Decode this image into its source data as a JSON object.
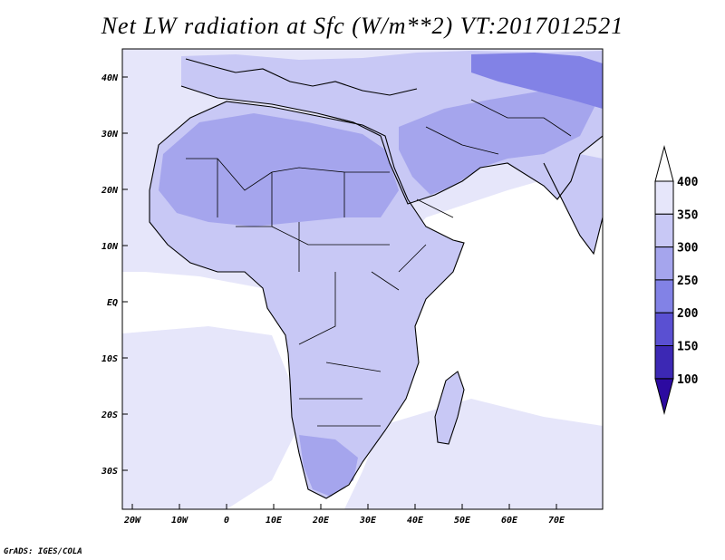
{
  "title": "Net LW radiation at Sfc (W/m**2) VT:2017012521",
  "credit": "GrADS: IGES/COLA",
  "lat_labels": [
    "40N",
    "30N",
    "20N",
    "10N",
    "EQ",
    "10S",
    "20S",
    "30S"
  ],
  "lon_labels": [
    "20W",
    "10W",
    "0",
    "10E",
    "20E",
    "30E",
    "40E",
    "50E",
    "60E",
    "70E"
  ],
  "colorbar": {
    "labels": [
      "400",
      "350",
      "300",
      "250",
      "200",
      "150",
      "100"
    ],
    "colors": [
      "#ffffff",
      "#e6e6fa",
      "#c8c8f5",
      "#a5a5ed",
      "#8282e6",
      "#5a50d2",
      "#3c28b4",
      "#2c0aa0"
    ]
  },
  "palette": {
    "ocean": "#ffffff",
    "ocean_soft": "#e6e6fa",
    "land_light": "#c8c8f5",
    "land_mid": "#a5a5ed",
    "land_dark": "#8282e6"
  }
}
